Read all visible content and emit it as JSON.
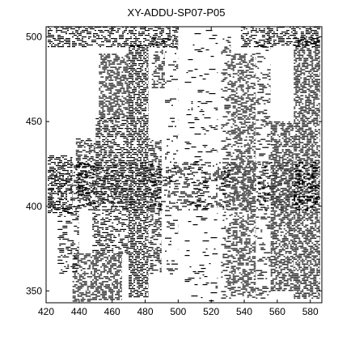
{
  "chart_data": {
    "type": "heatmap",
    "title": "XY-ADDU-SP07-P05",
    "xlabel": "",
    "ylabel": "",
    "xlim": [
      420,
      587
    ],
    "ylim": [
      343,
      506
    ],
    "x_ticks": [
      420,
      440,
      460,
      480,
      500,
      520,
      540,
      560,
      580
    ],
    "y_ticks": [
      350,
      400,
      450,
      500
    ],
    "grid": false,
    "colors": {
      "mark": "#000000",
      "background": "#ffffff",
      "frame": "#000000"
    },
    "description": "Binary dot matrix (black = present). Dense vertical bands of marks centered near x = 445-490, 525-545, and 560-585; a sparse horizontal band near y = 395-425; mostly empty region x = 490-520.",
    "bands": [
      {
        "x": [
          421,
          436
        ],
        "y": [
          396,
          430
        ],
        "density": 0.45
      },
      {
        "x": [
          427,
          440
        ],
        "y": [
          360,
          400
        ],
        "density": 0.18
      },
      {
        "x": [
          436,
          447
        ],
        "y": [
          344,
          372
        ],
        "density": 0.42
      },
      {
        "x": [
          438,
          450
        ],
        "y": [
          400,
          440
        ],
        "density": 0.38
      },
      {
        "x": [
          447,
          466
        ],
        "y": [
          345,
          372
        ],
        "density": 0.55
      },
      {
        "x": [
          448,
          470
        ],
        "y": [
          372,
          400
        ],
        "density": 0.35
      },
      {
        "x": [
          450,
          470
        ],
        "y": [
          402,
          452
        ],
        "density": 0.55
      },
      {
        "x": [
          452,
          470
        ],
        "y": [
          452,
          490
        ],
        "density": 0.5
      },
      {
        "x": [
          470,
          482
        ],
        "y": [
          346,
          495
        ],
        "density": 0.72
      },
      {
        "x": [
          482,
          490
        ],
        "y": [
          360,
          440
        ],
        "density": 0.35
      },
      {
        "x": [
          484,
          492
        ],
        "y": [
          470,
          500
        ],
        "density": 0.28
      },
      {
        "x": [
          492,
          500
        ],
        "y": [
          360,
          500
        ],
        "density": 0.07
      },
      {
        "x": [
          504,
          524
        ],
        "y": [
          344,
          506
        ],
        "density": 0.04
      },
      {
        "x": [
          526,
          532
        ],
        "y": [
          346,
          500
        ],
        "density": 0.18
      },
      {
        "x": [
          532,
          547
        ],
        "y": [
          346,
          490
        ],
        "density": 0.42
      },
      {
        "x": [
          547,
          556
        ],
        "y": [
          346,
          500
        ],
        "density": 0.12
      },
      {
        "x": [
          556,
          570
        ],
        "y": [
          350,
          450
        ],
        "density": 0.55
      },
      {
        "x": [
          570,
          586
        ],
        "y": [
          346,
          500
        ],
        "density": 0.6
      },
      {
        "x": [
          421,
          586
        ],
        "y": [
          398,
          426
        ],
        "density": 0.18
      },
      {
        "x": [
          421,
          500
        ],
        "y": [
          494,
          506
        ],
        "density": 0.4
      },
      {
        "x": [
          538,
          586
        ],
        "y": [
          494,
          506
        ],
        "density": 0.4
      }
    ]
  }
}
